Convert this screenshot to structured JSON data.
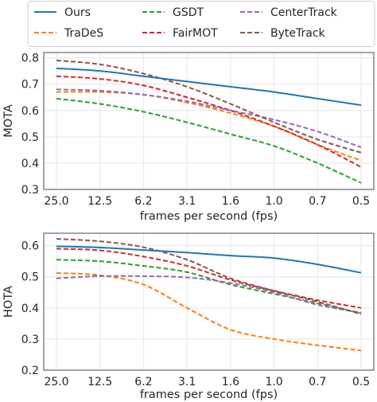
{
  "chart_data": [
    {
      "type": "line",
      "xlabel": "frames per second (fps)",
      "ylabel": "MOTA",
      "ylim": [
        0.3,
        0.82
      ],
      "yticks": [
        "0.3",
        "0.4",
        "0.5",
        "0.6",
        "0.7",
        "0.8"
      ],
      "categories": [
        "25.0",
        "12.5",
        "6.2",
        "3.1",
        "1.6",
        "1.0",
        "0.7",
        "0.5"
      ],
      "grid": true,
      "series": [
        {
          "name": "Ours",
          "color": "#1f77b4",
          "style": "solid",
          "values": [
            0.76,
            0.75,
            0.73,
            0.71,
            0.69,
            0.67,
            0.645,
            0.62
          ]
        },
        {
          "name": "TraDeS",
          "color": "#ff7f0e",
          "style": "dashed",
          "values": [
            0.67,
            0.67,
            0.66,
            0.63,
            0.59,
            0.54,
            0.47,
            0.41
          ]
        },
        {
          "name": "GSDT",
          "color": "#2ca02c",
          "style": "dashed",
          "values": [
            0.645,
            0.625,
            0.595,
            0.555,
            0.51,
            0.465,
            0.4,
            0.325
          ]
        },
        {
          "name": "FairMOT",
          "color": "#d62728",
          "style": "dashed",
          "values": [
            0.73,
            0.72,
            0.695,
            0.65,
            0.6,
            0.54,
            0.47,
            0.385
          ]
        },
        {
          "name": "CenterTrack",
          "color": "#9467bd",
          "style": "dashed",
          "values": [
            0.68,
            0.675,
            0.66,
            0.635,
            0.6,
            0.565,
            0.52,
            0.46
          ]
        },
        {
          "name": "ByteTrack",
          "color": "#8c564b",
          "style": "dashed",
          "values": [
            0.79,
            0.775,
            0.74,
            0.69,
            0.625,
            0.555,
            0.49,
            0.44
          ]
        }
      ]
    },
    {
      "type": "line",
      "xlabel": "frames per second (fps)",
      "ylabel": "HOTA",
      "ylim": [
        0.2,
        0.64
      ],
      "yticks": [
        "0.2",
        "0.3",
        "0.4",
        "0.5",
        "0.6"
      ],
      "categories": [
        "25.0",
        "12.5",
        "6.2",
        "3.1",
        "1.6",
        "1.0",
        "0.7",
        "0.5"
      ],
      "grid": true,
      "series": [
        {
          "name": "Ours",
          "color": "#1f77b4",
          "style": "solid",
          "values": [
            0.598,
            0.594,
            0.586,
            0.578,
            0.568,
            0.56,
            0.54,
            0.513
          ]
        },
        {
          "name": "TraDeS",
          "color": "#ff7f0e",
          "style": "dashed",
          "values": [
            0.512,
            0.505,
            0.475,
            0.4,
            0.33,
            0.3,
            0.28,
            0.263
          ]
        },
        {
          "name": "GSDT",
          "color": "#2ca02c",
          "style": "dashed",
          "values": [
            0.555,
            0.55,
            0.535,
            0.515,
            0.475,
            0.445,
            0.415,
            0.383
          ]
        },
        {
          "name": "FairMOT",
          "color": "#d62728",
          "style": "dashed",
          "values": [
            0.59,
            0.585,
            0.565,
            0.535,
            0.49,
            0.455,
            0.425,
            0.4
          ]
        },
        {
          "name": "CenterTrack",
          "color": "#9467bd",
          "style": "dashed",
          "values": [
            0.495,
            0.502,
            0.502,
            0.498,
            0.48,
            0.45,
            0.41,
            0.385
          ]
        },
        {
          "name": "ByteTrack",
          "color": "#8c564b",
          "style": "dashed",
          "values": [
            0.622,
            0.614,
            0.595,
            0.555,
            0.495,
            0.455,
            0.42,
            0.38
          ]
        }
      ]
    }
  ],
  "legend": {
    "placement": "top",
    "columns": 3,
    "entries": [
      "Ours",
      "TraDeS",
      "GSDT",
      "FairMOT",
      "CenterTrack",
      "ByteTrack"
    ]
  }
}
